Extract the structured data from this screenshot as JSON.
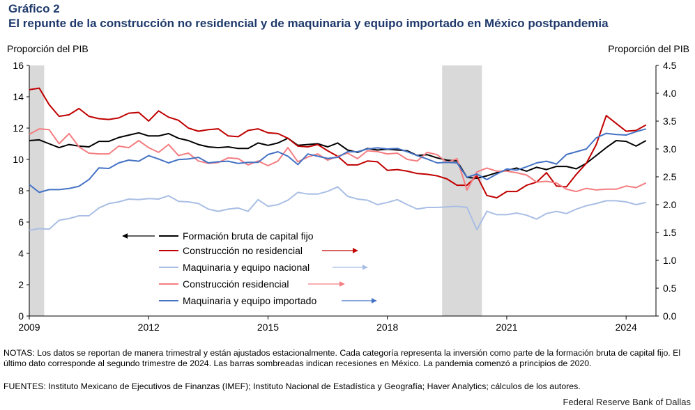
{
  "header": {
    "label": "Gráfico 2",
    "title": "El repunte de la construcción no residencial y de maquinaria y equipo importado en México postpandemia"
  },
  "axes": {
    "y_left_title": "Proporción del PIB",
    "y_right_title": "Proporción del PIB"
  },
  "chart_data": {
    "type": "line",
    "x_start": "2009 Q1",
    "x_end": "2024 Q2",
    "frequency": "quarterly",
    "xlim": [
      2009.0,
      2024.75
    ],
    "x_ticks": [
      "2009",
      "2012",
      "2015",
      "2018",
      "2021",
      "2024"
    ],
    "y_left": {
      "lim": [
        0,
        16
      ],
      "ticks": [
        "0",
        "2",
        "4",
        "6",
        "8",
        "10",
        "12",
        "14",
        "16"
      ]
    },
    "y_right": {
      "lim": [
        0,
        4.5
      ],
      "ticks": [
        "0.0",
        "0.5",
        "1.0",
        "1.5",
        "2.0",
        "2.5",
        "3.0",
        "3.5",
        "4.0",
        "4.5"
      ]
    },
    "recessions": [
      {
        "start": 2009.0,
        "end": 2009.375
      },
      {
        "start": 2019.375,
        "end": 2020.375
      }
    ],
    "grid": false,
    "series": [
      {
        "name": "Formación bruta de capital fijo",
        "axis": "left",
        "color": "#000000",
        "arrow": "left",
        "values": [
          11.2,
          11.25,
          11.0,
          10.75,
          10.95,
          10.85,
          10.8,
          11.15,
          11.15,
          11.4,
          11.55,
          11.7,
          11.5,
          11.5,
          11.65,
          11.35,
          11.2,
          10.95,
          10.8,
          10.75,
          10.8,
          10.7,
          10.7,
          11.05,
          10.9,
          11.05,
          11.35,
          10.9,
          10.95,
          11.0,
          10.8,
          11.05,
          10.6,
          10.45,
          10.7,
          10.6,
          10.65,
          10.6,
          10.55,
          10.25,
          10.3,
          10.1,
          9.95,
          9.9,
          8.85,
          8.8,
          8.95,
          9.15,
          9.3,
          9.45,
          9.25,
          9.5,
          9.35,
          9.55,
          9.55,
          9.4,
          9.75,
          10.25,
          10.75,
          11.2,
          11.15,
          10.85,
          11.2
        ]
      },
      {
        "name": "Construcción no residencial",
        "axis": "left",
        "color": "#c00000",
        "arrow": "right",
        "values": [
          14.45,
          14.55,
          13.5,
          12.75,
          12.85,
          13.25,
          12.75,
          12.6,
          12.55,
          12.65,
          12.95,
          13.0,
          12.45,
          13.1,
          12.7,
          12.5,
          12.0,
          11.8,
          11.9,
          11.95,
          11.5,
          11.45,
          11.85,
          11.95,
          11.7,
          11.65,
          11.35,
          10.85,
          10.8,
          10.95,
          10.55,
          10.2,
          9.65,
          9.65,
          9.9,
          9.85,
          9.3,
          9.35,
          9.25,
          9.1,
          9.05,
          8.95,
          8.75,
          8.35,
          8.35,
          8.95,
          7.7,
          7.55,
          7.95,
          7.95,
          8.35,
          8.55,
          9.15,
          8.3,
          8.25,
          9.05,
          9.75,
          10.95,
          12.8,
          12.3,
          11.8,
          11.85,
          12.2
        ]
      },
      {
        "name": "Maquinaria y equipo nacional",
        "axis": "right",
        "color": "#a9bee4",
        "arrow": "right",
        "values": [
          1.54,
          1.57,
          1.56,
          1.72,
          1.75,
          1.8,
          1.8,
          1.94,
          2.02,
          2.05,
          2.1,
          2.09,
          2.11,
          2.1,
          2.16,
          2.06,
          2.05,
          2.02,
          1.92,
          1.88,
          1.92,
          1.94,
          1.88,
          2.09,
          1.97,
          2.0,
          2.08,
          2.22,
          2.19,
          2.19,
          2.24,
          2.32,
          2.15,
          2.1,
          2.08,
          2.0,
          2.04,
          2.09,
          2.0,
          1.92,
          1.95,
          1.95,
          1.96,
          1.97,
          1.95,
          1.55,
          1.88,
          1.82,
          1.82,
          1.85,
          1.81,
          1.74,
          1.84,
          1.88,
          1.84,
          1.92,
          1.98,
          2.02,
          2.07,
          2.07,
          2.05,
          2.0,
          2.04
        ]
      },
      {
        "name": "Construcción residencial",
        "axis": "left",
        "color": "#f47c80",
        "arrow": "right",
        "values": [
          11.6,
          11.95,
          11.9,
          11.0,
          11.65,
          10.8,
          10.4,
          10.35,
          10.35,
          10.85,
          10.75,
          11.2,
          10.75,
          10.45,
          10.95,
          10.25,
          10.4,
          9.9,
          9.75,
          9.8,
          10.1,
          10.05,
          9.65,
          9.9,
          9.6,
          9.9,
          10.75,
          9.85,
          10.15,
          10.35,
          9.95,
          10.2,
          10.4,
          10.05,
          10.55,
          10.5,
          10.35,
          10.4,
          10.0,
          9.9,
          10.45,
          10.3,
          9.8,
          10.05,
          8.05,
          9.2,
          9.45,
          9.25,
          9.25,
          9.15,
          9.0,
          8.55,
          8.6,
          8.5,
          8.1,
          7.95,
          8.15,
          8.05,
          8.1,
          8.1,
          8.3,
          8.2,
          8.5
        ]
      },
      {
        "name": "Maquinaria y equipo importado",
        "axis": "right",
        "color": "#4472c4",
        "arrow": "right",
        "values": [
          2.36,
          2.22,
          2.27,
          2.27,
          2.29,
          2.33,
          2.45,
          2.66,
          2.65,
          2.75,
          2.8,
          2.78,
          2.88,
          2.82,
          2.75,
          2.81,
          2.82,
          2.85,
          2.75,
          2.77,
          2.78,
          2.74,
          2.76,
          2.76,
          2.9,
          2.95,
          2.87,
          2.72,
          2.91,
          2.87,
          2.83,
          2.85,
          2.95,
          2.95,
          3.0,
          3.02,
          3.0,
          3.01,
          2.95,
          2.88,
          2.82,
          2.75,
          2.76,
          2.75,
          2.49,
          2.55,
          2.45,
          2.55,
          2.64,
          2.62,
          2.68,
          2.75,
          2.78,
          2.73,
          2.9,
          2.95,
          3.0,
          3.2,
          3.28,
          3.26,
          3.25,
          3.31,
          3.36
        ]
      }
    ]
  },
  "legend": [
    "Formación bruta de capital fijo",
    "Construcción no residencial",
    "Maquinaria y equipo nacional",
    "Construcción residencial",
    "Maquinaria y equipo importado"
  ],
  "notes": "NOTAS: Los datos se reportan de manera trimestral y están ajustados estacionalmente. Cada categoría representa la inversión como parte de la formación bruta de capital fijo. El último dato corresponde al segundo trimestre de 2024. Las barras sombreadas indican recesiones en México. La pandemia comenzó a principios de 2020.",
  "sources": "FUENTES: Instituto Mexicano de Ejecutivos de Finanzas (IMEF); Instituto Nacional de Estadística y Geografía; Haver Analytics; cálculos de los autores.",
  "credit": "Federal Reserve Bank of Dallas"
}
